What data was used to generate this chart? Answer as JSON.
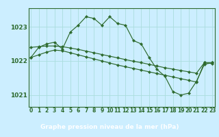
{
  "hours": [
    0,
    1,
    2,
    3,
    4,
    5,
    6,
    7,
    8,
    9,
    10,
    11,
    12,
    13,
    14,
    15,
    16,
    17,
    18,
    19,
    20,
    21,
    22,
    23
  ],
  "y_jagged": [
    1022.1,
    1022.4,
    1022.5,
    1022.55,
    1022.35,
    1022.85,
    1023.05,
    1023.3,
    1023.25,
    1023.05,
    1023.3,
    1023.1,
    1023.05,
    1022.6,
    1022.5,
    1022.1,
    1021.75,
    1021.55,
    1021.1,
    1021.0,
    1021.05,
    1021.4,
    1021.9,
    1021.95
  ],
  "y_line2": [
    1022.4,
    1022.42,
    1022.44,
    1022.44,
    1022.42,
    1022.38,
    1022.34,
    1022.29,
    1022.24,
    1022.19,
    1022.14,
    1022.09,
    1022.04,
    1021.99,
    1021.95,
    1021.9,
    1021.85,
    1021.8,
    1021.76,
    1021.72,
    1021.68,
    1021.64,
    1021.95,
    1021.95
  ],
  "y_line3": [
    1022.1,
    1022.18,
    1022.26,
    1022.32,
    1022.3,
    1022.24,
    1022.18,
    1022.12,
    1022.06,
    1022.0,
    1021.94,
    1021.88,
    1021.83,
    1021.78,
    1021.73,
    1021.68,
    1021.63,
    1021.58,
    1021.53,
    1021.48,
    1021.43,
    1021.38,
    1021.95,
    1021.92
  ],
  "ylim": [
    1020.65,
    1023.55
  ],
  "yticks": [
    1021,
    1022,
    1023
  ],
  "xlim": [
    -0.3,
    23.3
  ],
  "line_color": "#2d6a2d",
  "bg_color": "#cceeff",
  "grid_color": "#aadddd",
  "title": "Graphe pression niveau de la mer (hPa)",
  "title_bg": "#336633",
  "title_fg": "#ffffff",
  "title_fontsize": 6.5,
  "tick_fontsize": 5.5,
  "ytick_fontsize": 6.5
}
